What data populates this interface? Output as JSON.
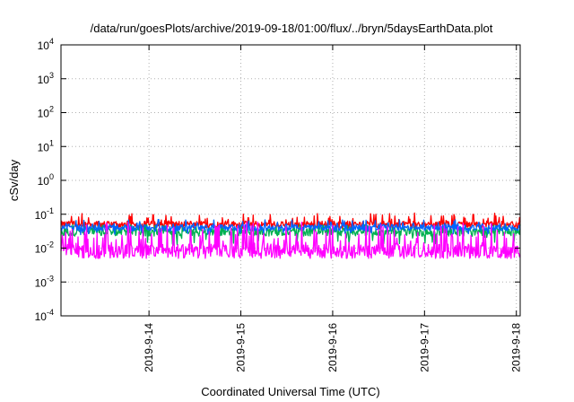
{
  "chart_data": {
    "type": "line",
    "title": "/data/run/goesPlots/archive/2019-09-18/01:00/flux/../bryn/5daysEarthData.plot",
    "xlabel": "Coordinated Universal Time (UTC)",
    "ylabel": "cSv/day",
    "yscale": "log",
    "ylim": [
      0.0001,
      10000
    ],
    "y_ticks": [
      {
        "base": "10",
        "exp": "-4"
      },
      {
        "base": "10",
        "exp": "-3"
      },
      {
        "base": "10",
        "exp": "-2"
      },
      {
        "base": "10",
        "exp": "-1"
      },
      {
        "base": "10",
        "exp": "0"
      },
      {
        "base": "10",
        "exp": "1"
      },
      {
        "base": "10",
        "exp": "2"
      },
      {
        "base": "10",
        "exp": "3"
      },
      {
        "base": "10",
        "exp": "4"
      }
    ],
    "xlim": [
      "2019-09-13 01:00",
      "2019-09-18 01:00"
    ],
    "x_ticks": [
      "2019-9-14",
      "2019-9-15",
      "2019-9-16",
      "2019-9-17",
      "2019-9-18"
    ],
    "grid": true,
    "series": [
      {
        "color": "#ff0000",
        "baseline": 0.05,
        "range": [
          0.035,
          0.11
        ]
      },
      {
        "color": "#00b050",
        "baseline": 0.03,
        "range": [
          0.012,
          0.05
        ]
      },
      {
        "color": "#0064ff",
        "baseline": 0.04,
        "range": [
          0.025,
          0.07
        ]
      },
      {
        "color": "#ff00ff",
        "baseline": 0.008,
        "range": [
          0.005,
          0.06
        ]
      }
    ]
  }
}
